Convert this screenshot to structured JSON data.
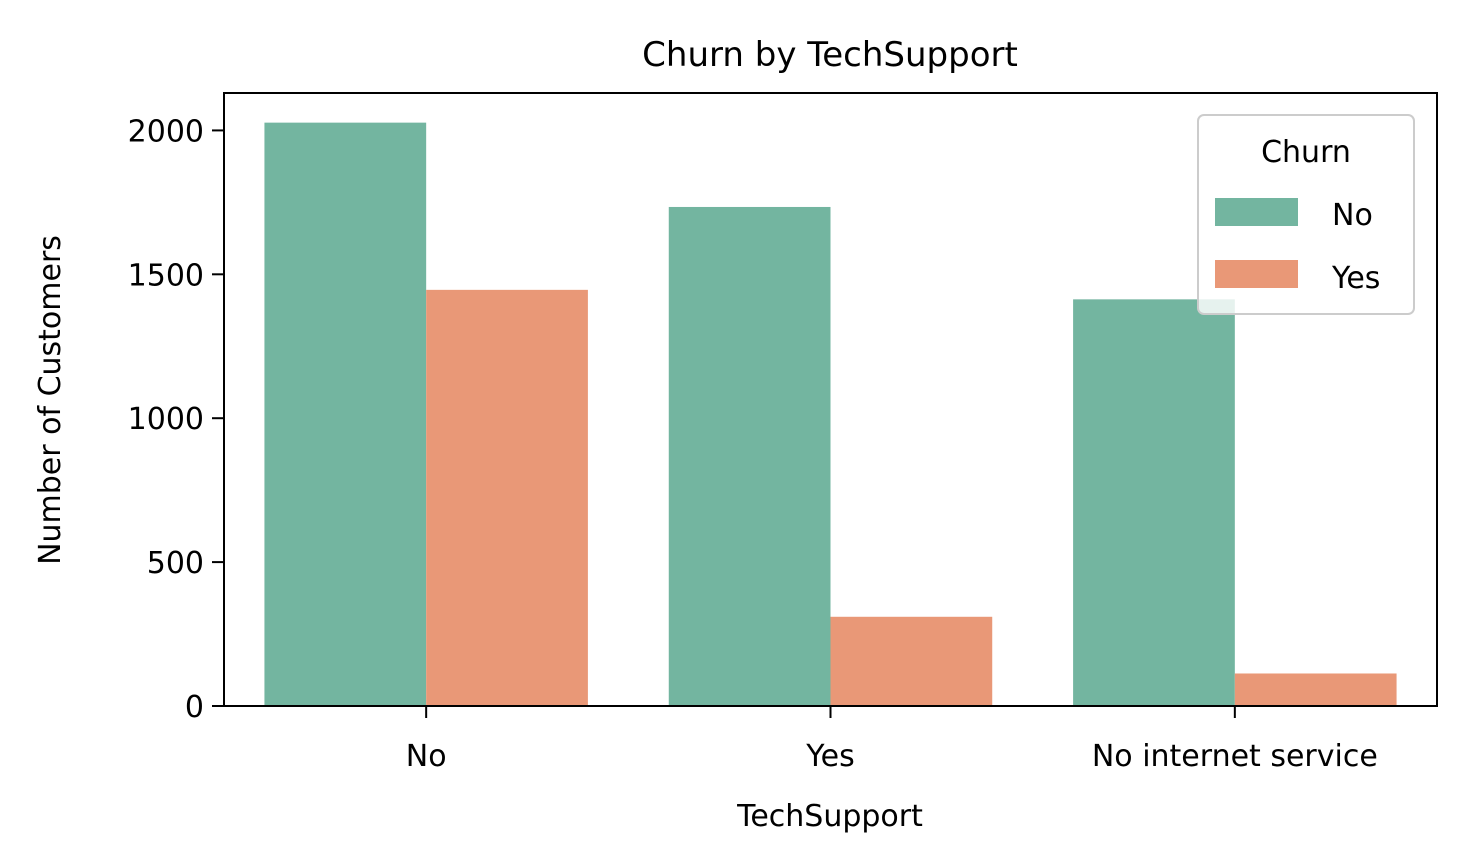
{
  "chart_data": {
    "type": "bar",
    "title": "Churn by TechSupport",
    "xlabel": "TechSupport",
    "ylabel": "Number of Customers",
    "categories": [
      "No",
      "Yes",
      "No internet service"
    ],
    "series": [
      {
        "name": "No",
        "color": "#73b5a0",
        "values": [
          2027,
          1734,
          1413
        ]
      },
      {
        "name": "Yes",
        "color": "#e99877",
        "values": [
          1446,
          310,
          113
        ]
      }
    ],
    "yticks": [
      0,
      500,
      1000,
      1500,
      2000
    ],
    "ylim": [
      0,
      2130
    ],
    "legend": {
      "title": "Churn",
      "position": "top-right"
    },
    "grid": false
  }
}
